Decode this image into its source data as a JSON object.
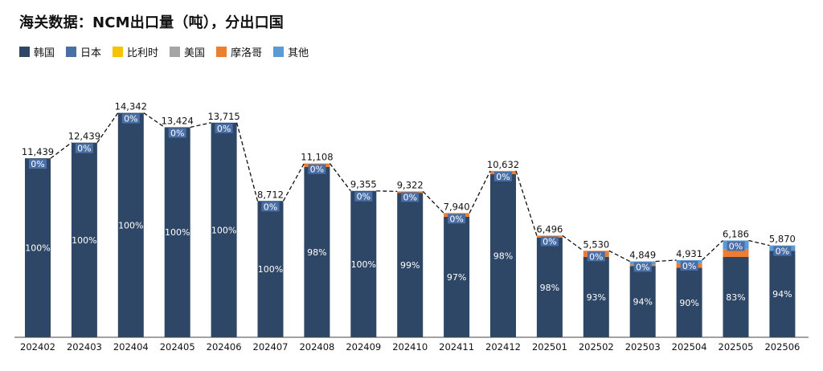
{
  "title": "海关数据：NCM出口量（吨），分出口国",
  "legend": [
    {
      "label": "韩国",
      "color": "#2f4766"
    },
    {
      "label": "日本",
      "color": "#4a6fa6"
    },
    {
      "label": "比利时",
      "color": "#f5c400"
    },
    {
      "label": "美国",
      "color": "#a5a5a5"
    },
    {
      "label": "摩洛哥",
      "color": "#ed7d31"
    },
    {
      "label": "其他",
      "color": "#5b9bd5"
    }
  ],
  "chart_data": {
    "type": "bar",
    "stacked": true,
    "title": "海关数据：NCM出口量（吨），分出口国",
    "categories": [
      "202402",
      "202403",
      "202404",
      "202405",
      "202406",
      "202407",
      "202408",
      "202409",
      "202410",
      "202411",
      "202412",
      "202501",
      "202502",
      "202503",
      "202504",
      "202505",
      "202506"
    ],
    "totals": [
      11439,
      12439,
      14342,
      13424,
      13715,
      8712,
      11108,
      9355,
      9322,
      7940,
      10632,
      6496,
      5530,
      4849,
      4931,
      6186,
      5870
    ],
    "total_labels": [
      "11,439",
      "12,439",
      "14,342",
      "13,424",
      "13,715",
      "8,712",
      "11,108",
      "9,355",
      "9,322",
      "7,940",
      "10,632",
      "6,496",
      "5,530",
      "4,849",
      "4,931",
      "6,186",
      "5,870"
    ],
    "series": [
      {
        "name": "韩国",
        "color": "#2f4766",
        "values": [
          11439,
          12439,
          14342,
          13424,
          13715,
          8712,
          10886,
          9355,
          9229,
          7702,
          10419,
          6366,
          5143,
          4558,
          4438,
          5134,
          5518
        ]
      },
      {
        "name": "日本",
        "color": "#4a6fa6",
        "values": [
          0,
          0,
          0,
          0,
          0,
          0,
          0,
          0,
          0,
          0,
          0,
          0,
          0,
          0,
          0,
          0,
          0
        ]
      },
      {
        "name": "比利时",
        "color": "#f5c400",
        "values": [
          0,
          0,
          0,
          0,
          0,
          0,
          0,
          0,
          0,
          0,
          0,
          0,
          0,
          0,
          0,
          0,
          0
        ]
      },
      {
        "name": "美国",
        "color": "#a5a5a5",
        "values": [
          0,
          0,
          0,
          0,
          0,
          0,
          0,
          0,
          0,
          0,
          0,
          0,
          0,
          0,
          0,
          0,
          0
        ]
      },
      {
        "name": "摩洛哥",
        "color": "#ed7d31",
        "values": [
          0,
          0,
          0,
          0,
          0,
          0,
          222,
          0,
          93,
          238,
          213,
          130,
          387,
          97,
          296,
          495,
          0
        ]
      },
      {
        "name": "其他",
        "color": "#5b9bd5",
        "values": [
          0,
          0,
          0,
          0,
          0,
          0,
          0,
          0,
          0,
          0,
          0,
          0,
          0,
          194,
          197,
          557,
          352
        ]
      }
    ],
    "main_share_labels": [
      "100%",
      "100%",
      "100%",
      "100%",
      "100%",
      "100%",
      "98%",
      "100%",
      "99%",
      "97%",
      "98%",
      "98%",
      "93%",
      "94%",
      "90%",
      "83%",
      "94%"
    ],
    "secondary_share_label": "0%",
    "legend_position": "top-left",
    "grid": false,
    "ylim": [
      0,
      15500
    ]
  }
}
